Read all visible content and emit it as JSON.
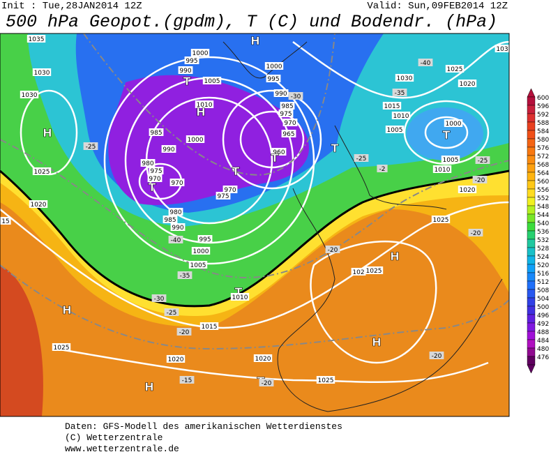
{
  "header": {
    "init": "Init : Tue,28JAN2014 12Z",
    "valid": "Valid: Sun,09FEB2014 12Z",
    "title": "500 hPa Geopot.(gpdm), T (C) und Bodendr. (hPa)"
  },
  "colorbar": {
    "levels": [
      600,
      596,
      592,
      588,
      584,
      580,
      576,
      572,
      568,
      564,
      560,
      556,
      552,
      548,
      544,
      540,
      536,
      532,
      528,
      524,
      520,
      516,
      512,
      508,
      504,
      500,
      496,
      492,
      488,
      484,
      480,
      476
    ],
    "colors": [
      "#b4103c",
      "#c8203c",
      "#dc3030",
      "#e84020",
      "#f05018",
      "#f46414",
      "#f87810",
      "#fa8c10",
      "#fca010",
      "#feb410",
      "#ffc818",
      "#ffdc20",
      "#f0f020",
      "#b4f020",
      "#78e628",
      "#3cdc3c",
      "#28d070",
      "#20c8a0",
      "#18c0c8",
      "#10b4e6",
      "#10a0f8",
      "#1888fa",
      "#2070fa",
      "#2858f0",
      "#3040e6",
      "#4030e0",
      "#6020e0",
      "#8018e0",
      "#a010d8",
      "#b010c0",
      "#900a90",
      "#600060"
    ]
  },
  "map": {
    "labels": [
      "1035",
      "1030",
      "1030",
      "H",
      "1025",
      "1020",
      "15",
      "-25",
      "1025",
      "H",
      "1000",
      "995",
      "990",
      "T",
      "1005",
      "1010",
      "H",
      "985",
      "1000",
      "990",
      "980",
      "975",
      "970",
      "T",
      "970",
      "T",
      "970",
      "975",
      "980",
      "985",
      "990",
      "995",
      "-40",
      "1000",
      "1005",
      "-35",
      "T",
      "1010",
      "-30",
      "H",
      "-25",
      "-20",
      "1015",
      "1025",
      "1020",
      "-15",
      "H",
      "1000",
      "995",
      "990",
      "985",
      "975",
      "970",
      "965",
      "960",
      "T",
      "-30",
      "T",
      "-25",
      "-2",
      "1015",
      "1010",
      "1005",
      "1030",
      "-35",
      "-40",
      "1025",
      "1020",
      "1000",
      "T",
      "1005",
      "1010",
      "-25",
      "-20",
      "1020",
      "103",
      "1025",
      "-20",
      "-20",
      "H",
      "1025",
      "102",
      "H",
      "-20",
      "1020",
      "1025",
      "T",
      "-20"
    ]
  },
  "footer": [
    "Daten: GFS-Modell des amerikanischen Wetterdienstes",
    "(C) Wetterzentrale",
    "www.wetterzentrale.de"
  ]
}
